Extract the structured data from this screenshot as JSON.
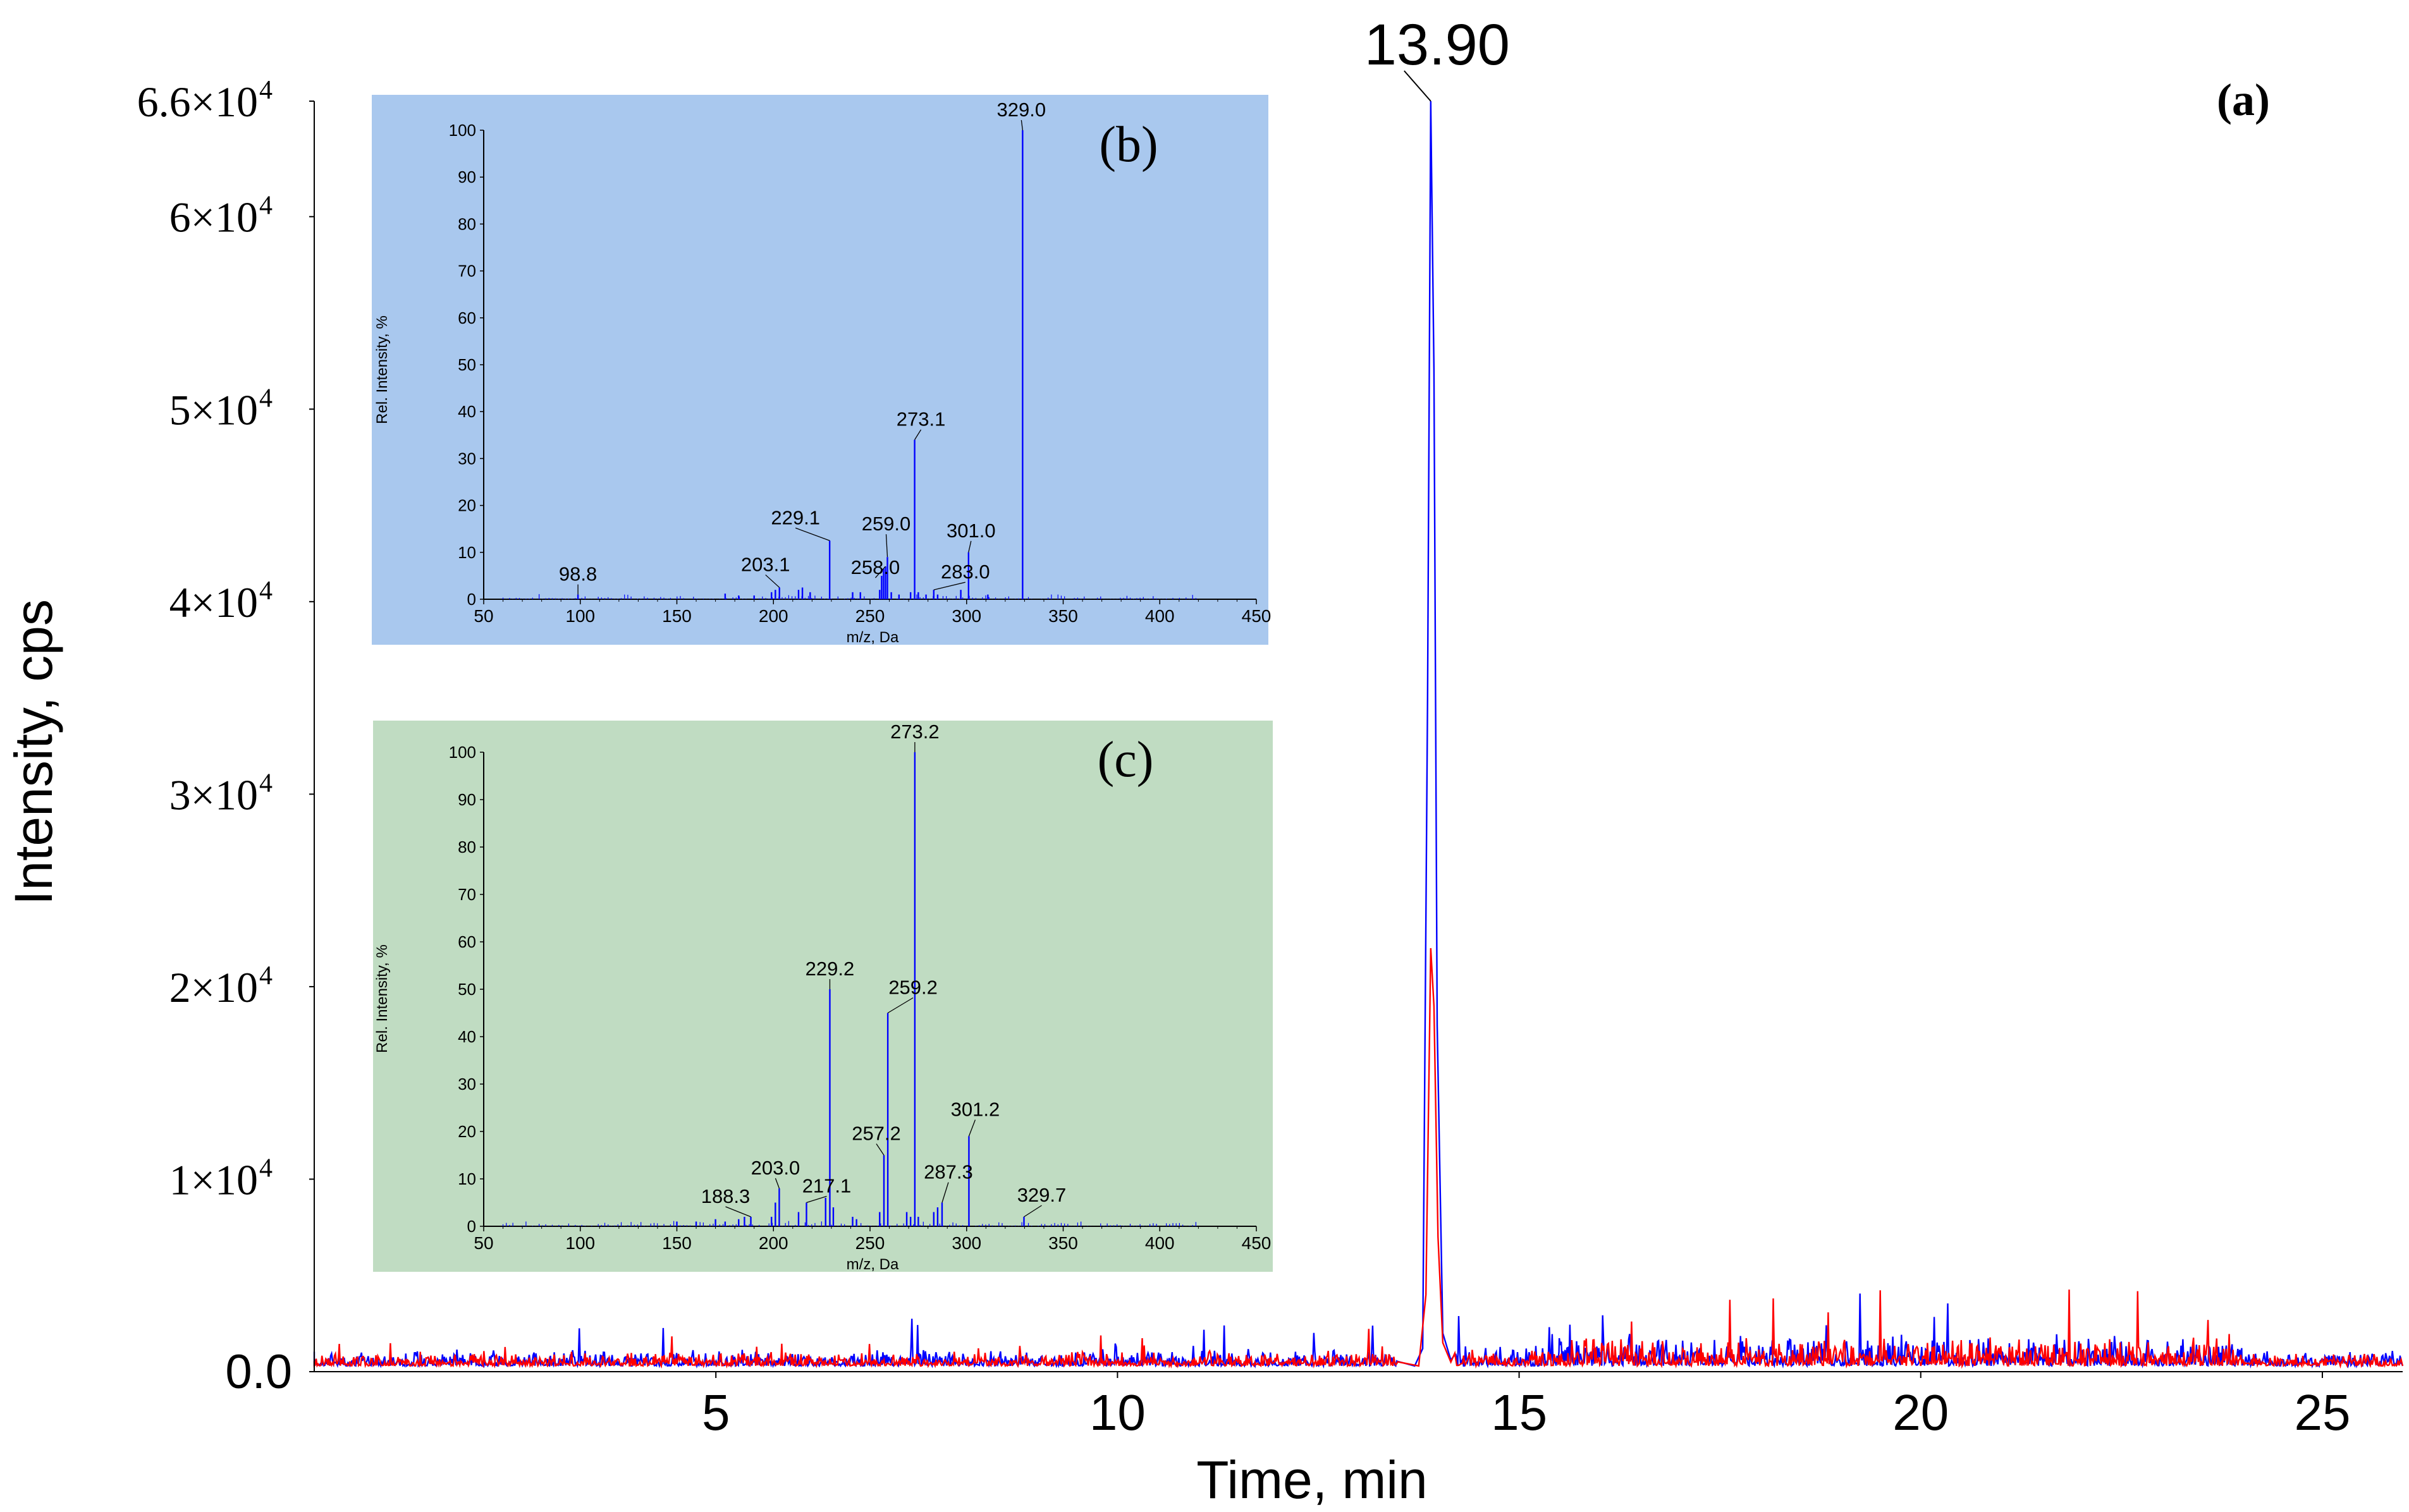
{
  "colors": {
    "background": "#ffffff",
    "axis": "#000000",
    "trace_red": "#ff0000",
    "trace_blue": "#0000ff",
    "inset_b_bg": "#a9c8ee",
    "inset_c_bg": "#c0dcc2",
    "spectrum_line": "#0000ff"
  },
  "chart_data": [
    {
      "id": "a",
      "type": "line",
      "panel_label": "(a)",
      "xlabel": "Time, min",
      "ylabel": "Intensity, cps",
      "xlim": [
        0,
        26
      ],
      "ylim": [
        0,
        66000
      ],
      "x_ticks": [
        {
          "value": 5,
          "label": "5"
        },
        {
          "value": 10,
          "label": "10"
        },
        {
          "value": 15,
          "label": "15"
        },
        {
          "value": 20,
          "label": "20"
        },
        {
          "value": 25,
          "label": "25"
        }
      ],
      "y_ticks": [
        {
          "value": 0,
          "label": "0.0"
        },
        {
          "value": 10000,
          "label": "1×10",
          "exp": "4"
        },
        {
          "value": 20000,
          "label": "2×10",
          "exp": "4"
        },
        {
          "value": 30000,
          "label": "3×10",
          "exp": "4"
        },
        {
          "value": 40000,
          "label": "4×10",
          "exp": "4"
        },
        {
          "value": 50000,
          "label": "5×10",
          "exp": "4"
        },
        {
          "value": 60000,
          "label": "6×10",
          "exp": "4"
        },
        {
          "value": 66000,
          "label": "6.6×10",
          "exp": "4"
        }
      ],
      "peak_label": {
        "x": 13.9,
        "y": 66000,
        "text": "13.90"
      },
      "series": [
        {
          "name": "blue trace",
          "color": "#0000ff",
          "points": [
            [
              0,
              300
            ],
            [
              13.7,
              300
            ],
            [
              13.8,
              1200
            ],
            [
              13.86,
              35000
            ],
            [
              13.9,
              66000
            ],
            [
              13.94,
              52000
            ],
            [
              13.98,
              18000
            ],
            [
              14.05,
              2000
            ],
            [
              14.15,
              600
            ],
            [
              26,
              300
            ]
          ],
          "noise_bands": [
            [
              0,
              13.5,
              900
            ],
            [
              14.2,
              15.5,
              1200
            ],
            [
              15.5,
              24,
              1800
            ],
            [
              24,
              26,
              900
            ]
          ]
        },
        {
          "name": "red trace",
          "color": "#ff0000",
          "points": [
            [
              0,
              300
            ],
            [
              13.75,
              300
            ],
            [
              13.84,
              4000
            ],
            [
              13.9,
              22000
            ],
            [
              13.94,
              19000
            ],
            [
              13.99,
              7000
            ],
            [
              14.05,
              1500
            ],
            [
              14.15,
              500
            ],
            [
              26,
              300
            ]
          ],
          "noise_bands": [
            [
              0,
              13.5,
              800
            ],
            [
              14.2,
              15.5,
              1100
            ],
            [
              15.5,
              24,
              1600
            ],
            [
              24,
              26,
              700
            ]
          ]
        }
      ]
    },
    {
      "id": "b",
      "type": "bar",
      "panel_label": "(b)",
      "xlabel": "m/z, Da",
      "ylabel": "Rel. Intensity, %",
      "xlim": [
        50,
        450
      ],
      "ylim": [
        0,
        100
      ],
      "x_ticks": [
        50,
        100,
        150,
        200,
        250,
        300,
        350,
        400,
        450
      ],
      "y_ticks": [
        0,
        10,
        20,
        30,
        40,
        50,
        60,
        70,
        80,
        90,
        100
      ],
      "peaks": [
        {
          "x": 98.8,
          "y": 1
        },
        {
          "x": 175,
          "y": 1.2
        },
        {
          "x": 182,
          "y": 0.8
        },
        {
          "x": 190,
          "y": 0.8
        },
        {
          "x": 199,
          "y": 1.5
        },
        {
          "x": 201,
          "y": 2
        },
        {
          "x": 203.1,
          "y": 2.5
        },
        {
          "x": 213,
          "y": 2
        },
        {
          "x": 215,
          "y": 2.5
        },
        {
          "x": 219,
          "y": 1.5
        },
        {
          "x": 229.1,
          "y": 12.5
        },
        {
          "x": 241,
          "y": 1.5
        },
        {
          "x": 245,
          "y": 1.5
        },
        {
          "x": 255,
          "y": 2
        },
        {
          "x": 256,
          "y": 5
        },
        {
          "x": 257,
          "y": 6.5
        },
        {
          "x": 258,
          "y": 7
        },
        {
          "x": 259,
          "y": 9
        },
        {
          "x": 261,
          "y": 1.5
        },
        {
          "x": 265,
          "y": 1
        },
        {
          "x": 271,
          "y": 1.5
        },
        {
          "x": 273.1,
          "y": 34
        },
        {
          "x": 275,
          "y": 1.5
        },
        {
          "x": 279,
          "y": 1
        },
        {
          "x": 283,
          "y": 2
        },
        {
          "x": 285,
          "y": 1
        },
        {
          "x": 297,
          "y": 2
        },
        {
          "x": 301,
          "y": 10
        },
        {
          "x": 311,
          "y": 1
        },
        {
          "x": 329,
          "y": 100
        }
      ],
      "labels": [
        {
          "x": 98.8,
          "text": "98.8"
        },
        {
          "x": 203.1,
          "text": "203.1"
        },
        {
          "x": 229.1,
          "text": "229.1"
        },
        {
          "x": 258.0,
          "text": "258.0"
        },
        {
          "x": 259.0,
          "text": "259.0"
        },
        {
          "x": 273.1,
          "text": "273.1"
        },
        {
          "x": 283.0,
          "text": "283.0"
        },
        {
          "x": 301.0,
          "text": "301.0"
        },
        {
          "x": 329.0,
          "text": "329.0"
        }
      ]
    },
    {
      "id": "c",
      "type": "bar",
      "panel_label": "(c)",
      "xlabel": "m/z, Da",
      "ylabel": "Rel. Intensity, %",
      "xlim": [
        50,
        450
      ],
      "ylim": [
        0,
        100
      ],
      "x_ticks": [
        50,
        100,
        150,
        200,
        250,
        300,
        350,
        400,
        450
      ],
      "y_ticks": [
        0,
        10,
        20,
        30,
        40,
        50,
        60,
        70,
        80,
        90,
        100
      ],
      "peaks": [
        {
          "x": 150,
          "y": 1
        },
        {
          "x": 160,
          "y": 1
        },
        {
          "x": 170,
          "y": 1.5
        },
        {
          "x": 175,
          "y": 1
        },
        {
          "x": 182,
          "y": 1.5
        },
        {
          "x": 185,
          "y": 2
        },
        {
          "x": 188.3,
          "y": 2
        },
        {
          "x": 199,
          "y": 2
        },
        {
          "x": 201,
          "y": 5
        },
        {
          "x": 203.0,
          "y": 8
        },
        {
          "x": 213,
          "y": 3
        },
        {
          "x": 217.1,
          "y": 5
        },
        {
          "x": 227,
          "y": 6
        },
        {
          "x": 229.2,
          "y": 50
        },
        {
          "x": 231,
          "y": 4
        },
        {
          "x": 241,
          "y": 2
        },
        {
          "x": 243,
          "y": 1.5
        },
        {
          "x": 255,
          "y": 3
        },
        {
          "x": 257.2,
          "y": 15
        },
        {
          "x": 259.2,
          "y": 45
        },
        {
          "x": 269,
          "y": 3
        },
        {
          "x": 271,
          "y": 2
        },
        {
          "x": 273.2,
          "y": 100
        },
        {
          "x": 275,
          "y": 2
        },
        {
          "x": 283,
          "y": 3
        },
        {
          "x": 285,
          "y": 4
        },
        {
          "x": 287.3,
          "y": 5
        },
        {
          "x": 301.2,
          "y": 19
        },
        {
          "x": 329.7,
          "y": 2
        }
      ],
      "labels": [
        {
          "x": 188.3,
          "text": "188.3"
        },
        {
          "x": 203.0,
          "text": "203.0"
        },
        {
          "x": 217.1,
          "text": "217.1"
        },
        {
          "x": 229.2,
          "text": "229.2"
        },
        {
          "x": 257.2,
          "text": "257.2"
        },
        {
          "x": 259.2,
          "text": "259.2"
        },
        {
          "x": 273.2,
          "text": "273.2"
        },
        {
          "x": 287.3,
          "text": "287.3"
        },
        {
          "x": 301.2,
          "text": "301.2"
        },
        {
          "x": 329.7,
          "text": "329.7"
        }
      ]
    }
  ]
}
